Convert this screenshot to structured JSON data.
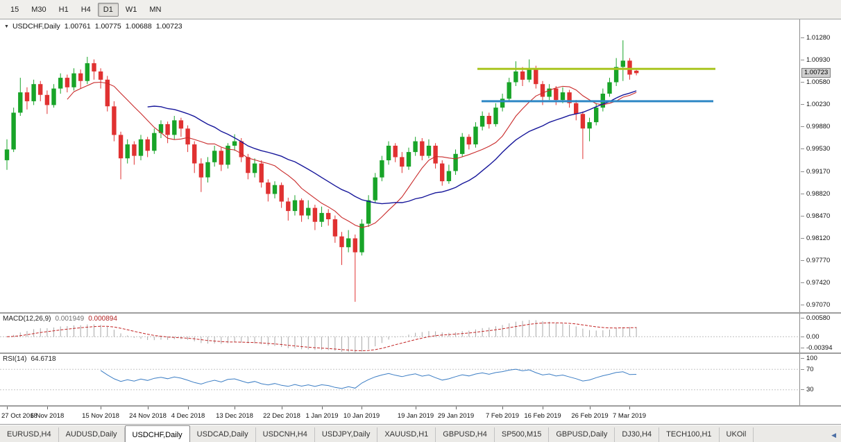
{
  "toolbar": {
    "timeframes": [
      {
        "label": "15",
        "selected": false
      },
      {
        "label": "M30",
        "selected": false
      },
      {
        "label": "H1",
        "selected": false
      },
      {
        "label": "H4",
        "selected": false
      },
      {
        "label": "D1",
        "selected": true
      },
      {
        "label": "W1",
        "selected": false
      },
      {
        "label": "MN",
        "selected": false
      }
    ]
  },
  "chart": {
    "marker": "▼",
    "symbol": "USDCHF,Daily",
    "open": "1.00761",
    "high": "1.00775",
    "low": "1.00688",
    "close": "1.00723",
    "current_price": "1.00723",
    "price_axis_labels": [
      "1.01280",
      "1.00930",
      "1.00580",
      "1.00230",
      "0.99880",
      "0.99530",
      "0.99170",
      "0.98820",
      "0.98470",
      "0.98120",
      "0.97770",
      "0.97420",
      "0.97070"
    ]
  },
  "chart_data": {
    "type": "candlestick",
    "symbol": "USDCHF",
    "timeframe": "Daily",
    "colors": {
      "up": "#18a428",
      "down": "#e03131",
      "ma_fast": "#c92a2a",
      "ma_slow": "#16169a",
      "resistance": "#a9c520",
      "support": "#2f88c5",
      "macd_signal": "#c22222",
      "macd_hist": "#a8a8a8",
      "rsi": "#3b7dc4",
      "levels": "#c6c6c6"
    },
    "moving_averages": [
      {
        "period": 10,
        "color_key": "ma_fast"
      },
      {
        "period": 22,
        "color_key": "ma_slow"
      }
    ],
    "hlines": [
      {
        "value": 1.0079,
        "color_key": "resistance",
        "x0_frac": 0.597,
        "x1_frac": 0.895,
        "width": 3
      },
      {
        "value": 1.0028,
        "color_key": "support",
        "x0_frac": 0.602,
        "x1_frac": 0.892,
        "width": 3
      }
    ],
    "x_ticks": {
      "indices": [
        0,
        6,
        14,
        21,
        27,
        34,
        41,
        47,
        53,
        61,
        67,
        74,
        80,
        87,
        93
      ],
      "labels": [
        "27 Oct 2018",
        "6 Nov 2018",
        "15 Nov 2018",
        "24 Nov 2018",
        "4 Dec 2018",
        "13 Dec 2018",
        "22 Dec 2018",
        "1 Jan 2019",
        "10 Jan 2019",
        "19 Jan 2019",
        "29 Jan 2019",
        "7 Feb 2019",
        "16 Feb 2019",
        "26 Feb 2019",
        "7 Mar 2019"
      ]
    },
    "candles": [
      [
        0.9935,
        0.9968,
        0.992,
        0.9952
      ],
      [
        0.9952,
        1.0018,
        0.9948,
        1.001
      ],
      [
        1.001,
        1.0065,
        1.0005,
        1.0042
      ],
      [
        1.0042,
        1.005,
        1.0015,
        1.0028
      ],
      [
        1.0028,
        1.0062,
        1.0022,
        1.0055
      ],
      [
        1.0055,
        1.006,
        1.0028,
        1.0038
      ],
      [
        1.0038,
        1.0045,
        1.0008,
        1.0022
      ],
      [
        1.0022,
        1.0055,
        1.0018,
        1.0048
      ],
      [
        1.0048,
        1.0072,
        1.004,
        1.0065
      ],
      [
        1.0065,
        1.007,
        1.0042,
        1.005
      ],
      [
        1.005,
        1.008,
        1.0045,
        1.0072
      ],
      [
        1.0072,
        1.0078,
        1.0048,
        1.006
      ],
      [
        1.006,
        1.0098,
        1.0055,
        1.0088
      ],
      [
        1.0088,
        1.0094,
        1.0062,
        1.0075
      ],
      [
        1.0075,
        1.008,
        1.0048,
        1.0062
      ],
      [
        1.0062,
        1.0068,
        1.0012,
        1.002
      ],
      [
        1.002,
        1.0028,
        0.9965,
        0.9975
      ],
      [
        0.9975,
        0.998,
        0.9905,
        0.9938
      ],
      [
        0.9938,
        0.9968,
        0.993,
        0.996
      ],
      [
        0.996,
        0.9965,
        0.9928,
        0.9942
      ],
      [
        0.9942,
        0.9975,
        0.9935,
        0.9968
      ],
      [
        0.9968,
        0.9972,
        0.994,
        0.995
      ],
      [
        0.995,
        0.9985,
        0.9945,
        0.9978
      ],
      [
        0.9978,
        0.9998,
        0.997,
        0.9992
      ],
      [
        0.9992,
        0.9996,
        0.9962,
        0.9975
      ],
      [
        0.9975,
        1.0005,
        0.9968,
        0.9998
      ],
      [
        0.9998,
        1.0002,
        0.9972,
        0.9985
      ],
      [
        0.9985,
        0.999,
        0.9948,
        0.996
      ],
      [
        0.996,
        0.9965,
        0.9915,
        0.993
      ],
      [
        0.993,
        0.9938,
        0.9885,
        0.9908
      ],
      [
        0.9908,
        0.994,
        0.99,
        0.9932
      ],
      [
        0.9932,
        0.9958,
        0.9925,
        0.995
      ],
      [
        0.995,
        0.9955,
        0.9918,
        0.9928
      ],
      [
        0.9928,
        0.9962,
        0.9922,
        0.9958
      ],
      [
        0.9958,
        0.9976,
        0.995,
        0.9965
      ],
      [
        0.9965,
        0.997,
        0.9932,
        0.994
      ],
      [
        0.994,
        0.9945,
        0.9905,
        0.9915
      ],
      [
        0.9915,
        0.9938,
        0.9908,
        0.993
      ],
      [
        0.993,
        0.9935,
        0.9892,
        0.99
      ],
      [
        0.99,
        0.9905,
        0.987,
        0.9882
      ],
      [
        0.9882,
        0.9902,
        0.9875,
        0.9896
      ],
      [
        0.9896,
        0.99,
        0.986,
        0.987
      ],
      [
        0.987,
        0.9876,
        0.984,
        0.9855
      ],
      [
        0.9855,
        0.988,
        0.9848,
        0.9872
      ],
      [
        0.9872,
        0.9875,
        0.9838,
        0.9848
      ],
      [
        0.9848,
        0.9872,
        0.9842,
        0.986
      ],
      [
        0.986,
        0.9865,
        0.9825,
        0.9838
      ],
      [
        0.9838,
        0.9862,
        0.983,
        0.9852
      ],
      [
        0.9852,
        0.9858,
        0.9832,
        0.9842
      ],
      [
        0.9842,
        0.9848,
        0.9805,
        0.9815
      ],
      [
        0.9815,
        0.9822,
        0.977,
        0.9798
      ],
      [
        0.9798,
        0.9825,
        0.979,
        0.9812
      ],
      [
        0.9812,
        0.9818,
        0.9712,
        0.979
      ],
      [
        0.979,
        0.9842,
        0.9785,
        0.9835
      ],
      [
        0.9835,
        0.988,
        0.983,
        0.9872
      ],
      [
        0.9872,
        0.9915,
        0.9868,
        0.9908
      ],
      [
        0.9908,
        0.9942,
        0.9902,
        0.9935
      ],
      [
        0.9935,
        0.9965,
        0.9928,
        0.9958
      ],
      [
        0.9958,
        0.9962,
        0.9932,
        0.994
      ],
      [
        0.994,
        0.9948,
        0.9915,
        0.9925
      ],
      [
        0.9925,
        0.9955,
        0.992,
        0.9948
      ],
      [
        0.9948,
        0.9972,
        0.9942,
        0.9965
      ],
      [
        0.9965,
        0.997,
        0.9935,
        0.9942
      ],
      [
        0.9942,
        0.9968,
        0.9938,
        0.9958
      ],
      [
        0.9958,
        0.9962,
        0.9922,
        0.993
      ],
      [
        0.993,
        0.9935,
        0.9895,
        0.9902
      ],
      [
        0.9902,
        0.9928,
        0.9898,
        0.9918
      ],
      [
        0.9918,
        0.9952,
        0.9912,
        0.9945
      ],
      [
        0.9945,
        0.9978,
        0.994,
        0.9972
      ],
      [
        0.9972,
        0.9976,
        0.9952,
        0.996
      ],
      [
        0.996,
        0.9995,
        0.9955,
        0.9988
      ],
      [
        0.9988,
        1.0012,
        0.9982,
        1.0005
      ],
      [
        1.0005,
        1.001,
        0.9985,
        0.9992
      ],
      [
        0.9992,
        1.0025,
        0.9988,
        1.0018
      ],
      [
        1.0018,
        1.004,
        1.0012,
        1.0032
      ],
      [
        1.0032,
        1.0065,
        1.0028,
        1.0058
      ],
      [
        1.0058,
        1.0091,
        1.0052,
        1.0075
      ],
      [
        1.0075,
        1.0082,
        1.0052,
        1.0062
      ],
      [
        1.0062,
        1.0094,
        1.0058,
        1.0078
      ],
      [
        1.0078,
        1.0084,
        1.0048,
        1.0055
      ],
      [
        1.0055,
        1.006,
        1.0022,
        1.0035
      ],
      [
        1.0035,
        1.0055,
        1.003,
        1.0048
      ],
      [
        1.0048,
        1.0052,
        1.0022,
        1.003
      ],
      [
        1.003,
        1.005,
        1.0025,
        1.0042
      ],
      [
        1.0042,
        1.0046,
        1.0018,
        1.0025
      ],
      [
        1.0025,
        1.003,
        0.9998,
        1.0008
      ],
      [
        1.0008,
        1.0012,
        0.9937,
        0.9985
      ],
      [
        0.9985,
        1.0002,
        0.9965,
        0.9995
      ],
      [
        0.9995,
        1.0025,
        0.999,
        1.0018
      ],
      [
        1.0018,
        1.0048,
        1.0012,
        1.004
      ],
      [
        1.004,
        1.0065,
        1.0035,
        1.0058
      ],
      [
        1.0058,
        1.0096,
        1.0052,
        1.0082
      ],
      [
        1.0082,
        1.0124,
        1.006,
        1.0092
      ],
      [
        1.0092,
        1.0096,
        1.0062,
        1.007
      ],
      [
        1.00761,
        1.00775,
        1.00688,
        1.00723
      ]
    ]
  },
  "macd": {
    "name": "MACD(12,26,9)",
    "main_value": "0.001949",
    "signal_value": "0.000894",
    "fast": 12,
    "slow": 26,
    "signal": 9,
    "axis_labels": [
      "0.00580",
      "0.00",
      "-0.00394"
    ],
    "range": {
      "top": 0.0058,
      "bottom": -0.00394
    }
  },
  "rsi": {
    "name": "RSI(14)",
    "value": "64.6718",
    "period": 14,
    "levels": [
      70,
      30
    ],
    "axis_labels": [
      "100",
      "70",
      "30"
    ],
    "range": {
      "top": 100,
      "bottom": 0
    }
  },
  "tabs": {
    "scroll_left_icon": "◀",
    "items": [
      {
        "label": "EURUSD,H4",
        "selected": false
      },
      {
        "label": "AUDUSD,Daily",
        "selected": false
      },
      {
        "label": "USDCHF,Daily",
        "selected": true
      },
      {
        "label": "USDCAD,Daily",
        "selected": false
      },
      {
        "label": "USDCNH,H4",
        "selected": false
      },
      {
        "label": "USDJPY,Daily",
        "selected": false
      },
      {
        "label": "XAUUSD,H1",
        "selected": false
      },
      {
        "label": "GBPUSD,H4",
        "selected": false
      },
      {
        "label": "SP500,M15",
        "selected": false
      },
      {
        "label": "GBPUSD,Daily",
        "selected": false
      },
      {
        "label": "DJ30,H4",
        "selected": false
      },
      {
        "label": "TECH100,H1",
        "selected": false
      },
      {
        "label": "UKOil",
        "selected": false
      }
    ]
  }
}
